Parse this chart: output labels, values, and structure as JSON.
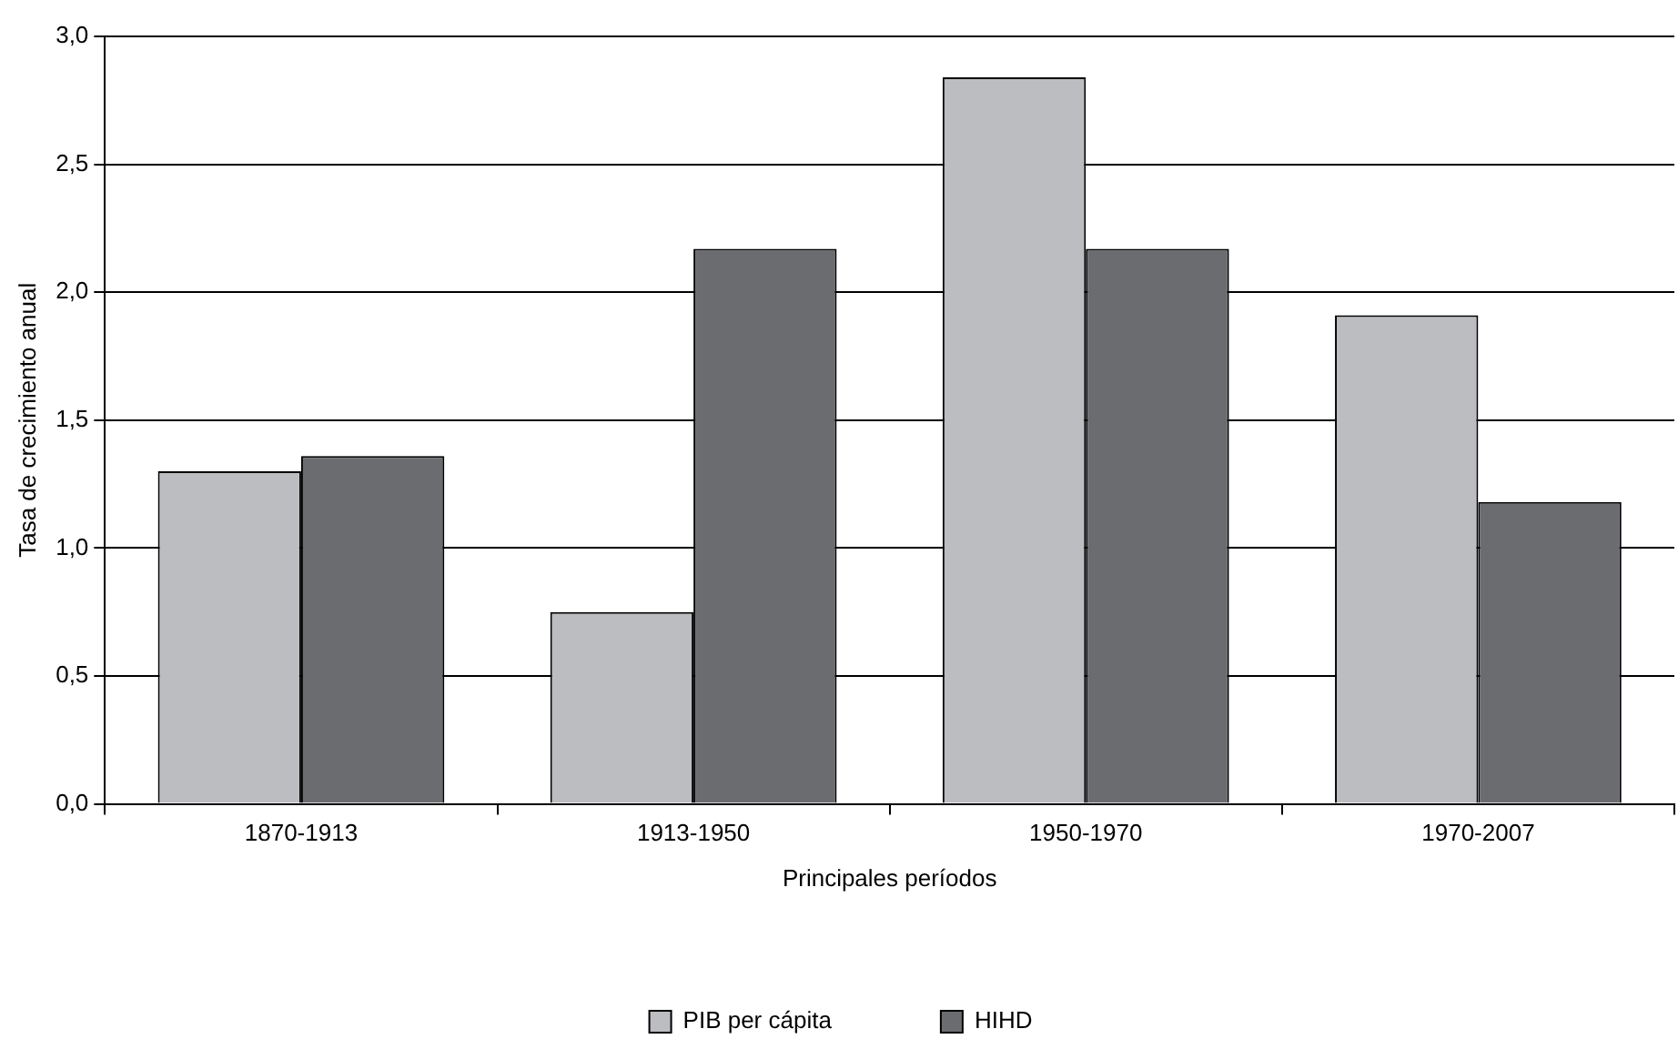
{
  "chart_data": {
    "type": "bar",
    "xlabel": "Principales períodos",
    "ylabel": "Tasa de crecimiento anual",
    "categories": [
      "1870-1913",
      "1913-1950",
      "1950-1970",
      "1970-2007"
    ],
    "series": [
      {
        "name": "PIB per cápita",
        "color": "#bcbdc0",
        "values": [
          1.3,
          0.75,
          2.84,
          1.91
        ]
      },
      {
        "name": "HIHD",
        "color": "#6b6c70",
        "values": [
          1.36,
          2.17,
          2.17,
          1.18
        ]
      }
    ],
    "ylim": [
      0,
      3
    ],
    "yticks": [
      {
        "value": 0,
        "label": "0,0"
      },
      {
        "value": 0.5,
        "label": "0,5"
      },
      {
        "value": 1,
        "label": "1,0"
      },
      {
        "value": 1.5,
        "label": "1,5"
      },
      {
        "value": 2,
        "label": "2,0"
      },
      {
        "value": 2.5,
        "label": "2,5"
      },
      {
        "value": 3,
        "label": "3,0"
      }
    ],
    "grid": "y",
    "legend": "bottom"
  }
}
